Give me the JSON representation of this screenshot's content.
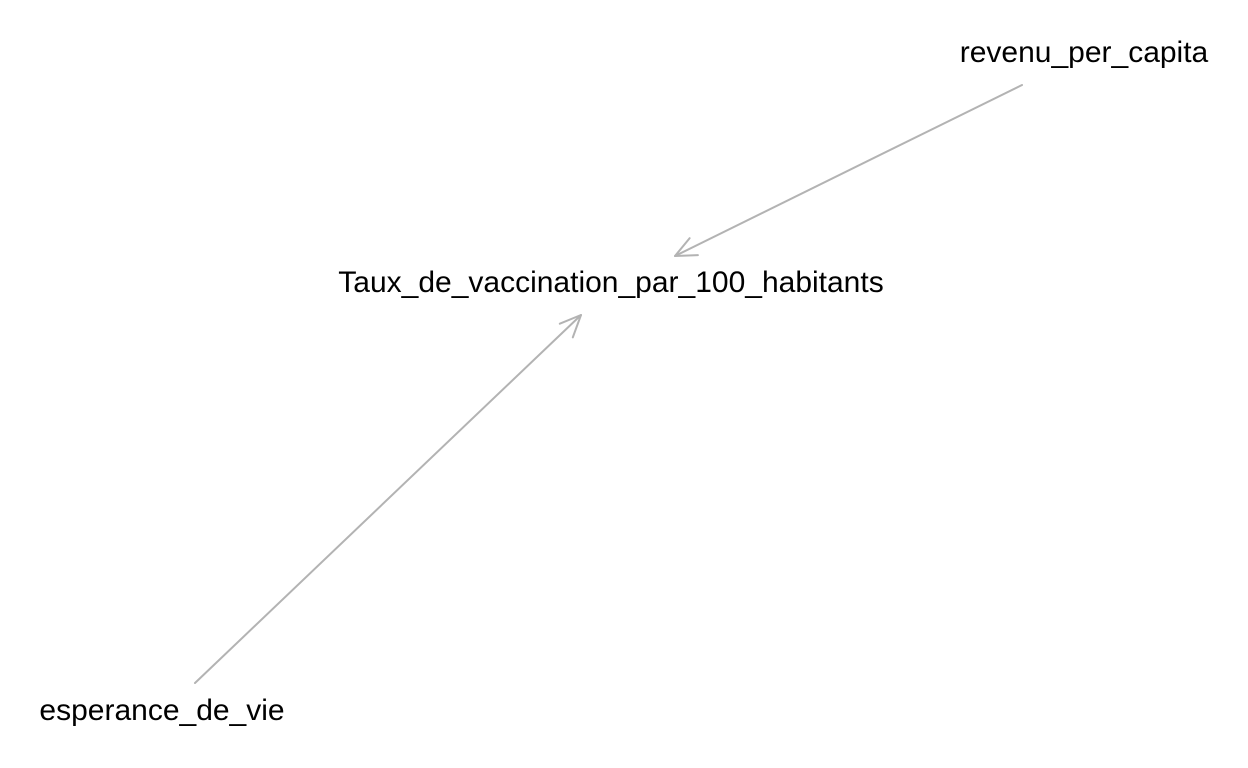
{
  "diagram": {
    "edge_color": "#b3b3b3",
    "text_color": "#000000",
    "nodes": [
      {
        "id": "revenu",
        "label": "revenu_per_capita"
      },
      {
        "id": "taux",
        "label": "Taux_de_vaccination_par_100_habitants"
      },
      {
        "id": "esperance",
        "label": "esperance_de_vie"
      }
    ],
    "edges": [
      {
        "from": "revenu",
        "to": "taux"
      },
      {
        "from": "esperance",
        "to": "taux"
      }
    ]
  }
}
